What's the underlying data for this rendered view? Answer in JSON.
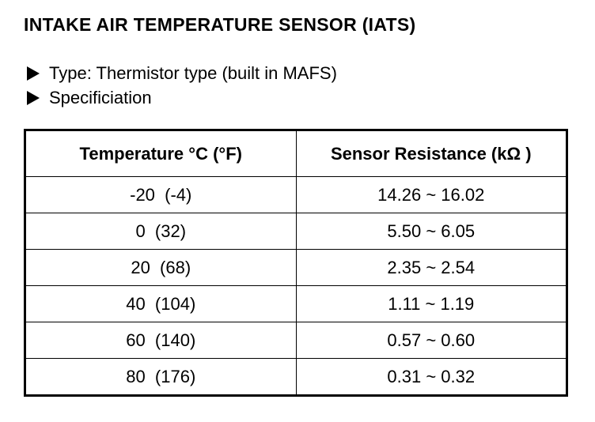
{
  "header": {
    "title": "INTAKE AIR TEMPERATURE SENSOR (IATS)"
  },
  "bullets": [
    "Type: Thermistor type (built in MAFS)",
    "Specificiation"
  ],
  "table": {
    "columns": [
      "Temperature °C (°F)",
      "Sensor Resistance (kΩ )"
    ],
    "rows": [
      [
        "-20  (-4)",
        "14.26 ~ 16.02"
      ],
      [
        "0  (32)",
        "5.50 ~ 6.05"
      ],
      [
        "20  (68)",
        "2.35 ~ 2.54"
      ],
      [
        "40  (104)",
        "1.11 ~ 1.19"
      ],
      [
        "60  (140)",
        "0.57 ~ 0.60"
      ],
      [
        "80  (176)",
        "0.31 ~ 0.32"
      ]
    ]
  }
}
